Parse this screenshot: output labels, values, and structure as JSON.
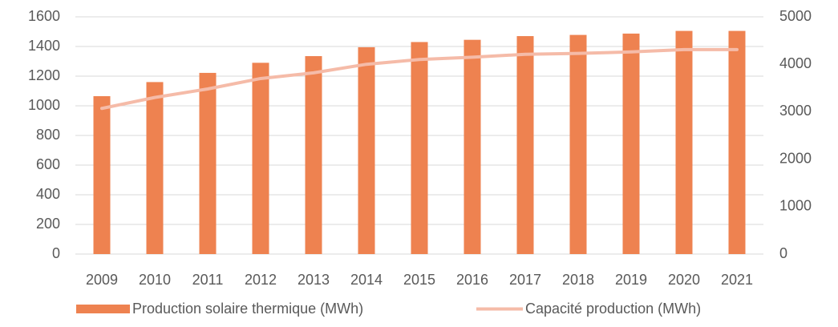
{
  "chart_data": {
    "type": "bar",
    "categories": [
      "2009",
      "2010",
      "2011",
      "2012",
      "2013",
      "2014",
      "2015",
      "2016",
      "2017",
      "2018",
      "2019",
      "2020",
      "2021"
    ],
    "series": [
      {
        "name": "Production solaire thermique (MWh)",
        "color": "#ee8250",
        "type": "bar",
        "values": [
          1065,
          1160,
          1222,
          1290,
          1335,
          1395,
          1430,
          1445,
          1470,
          1478,
          1487,
          1505,
          1505
        ]
      },
      {
        "name": "Capacité production (MWh)",
        "color": "#f5bba8",
        "type": "line",
        "axis": "y2",
        "values": [
          3070,
          3300,
          3480,
          3700,
          3820,
          4000,
          4100,
          4150,
          4210,
          4230,
          4260,
          4310,
          4310
        ]
      }
    ],
    "ylim": [
      0,
      1600
    ],
    "yticks": [
      0,
      200,
      400,
      600,
      800,
      1000,
      1200,
      1400,
      1600
    ],
    "y2lim": [
      0,
      5000
    ],
    "y2ticks": [
      0,
      1000,
      2000,
      3000,
      4000,
      5000
    ],
    "grid": true,
    "legend": "bottom"
  }
}
